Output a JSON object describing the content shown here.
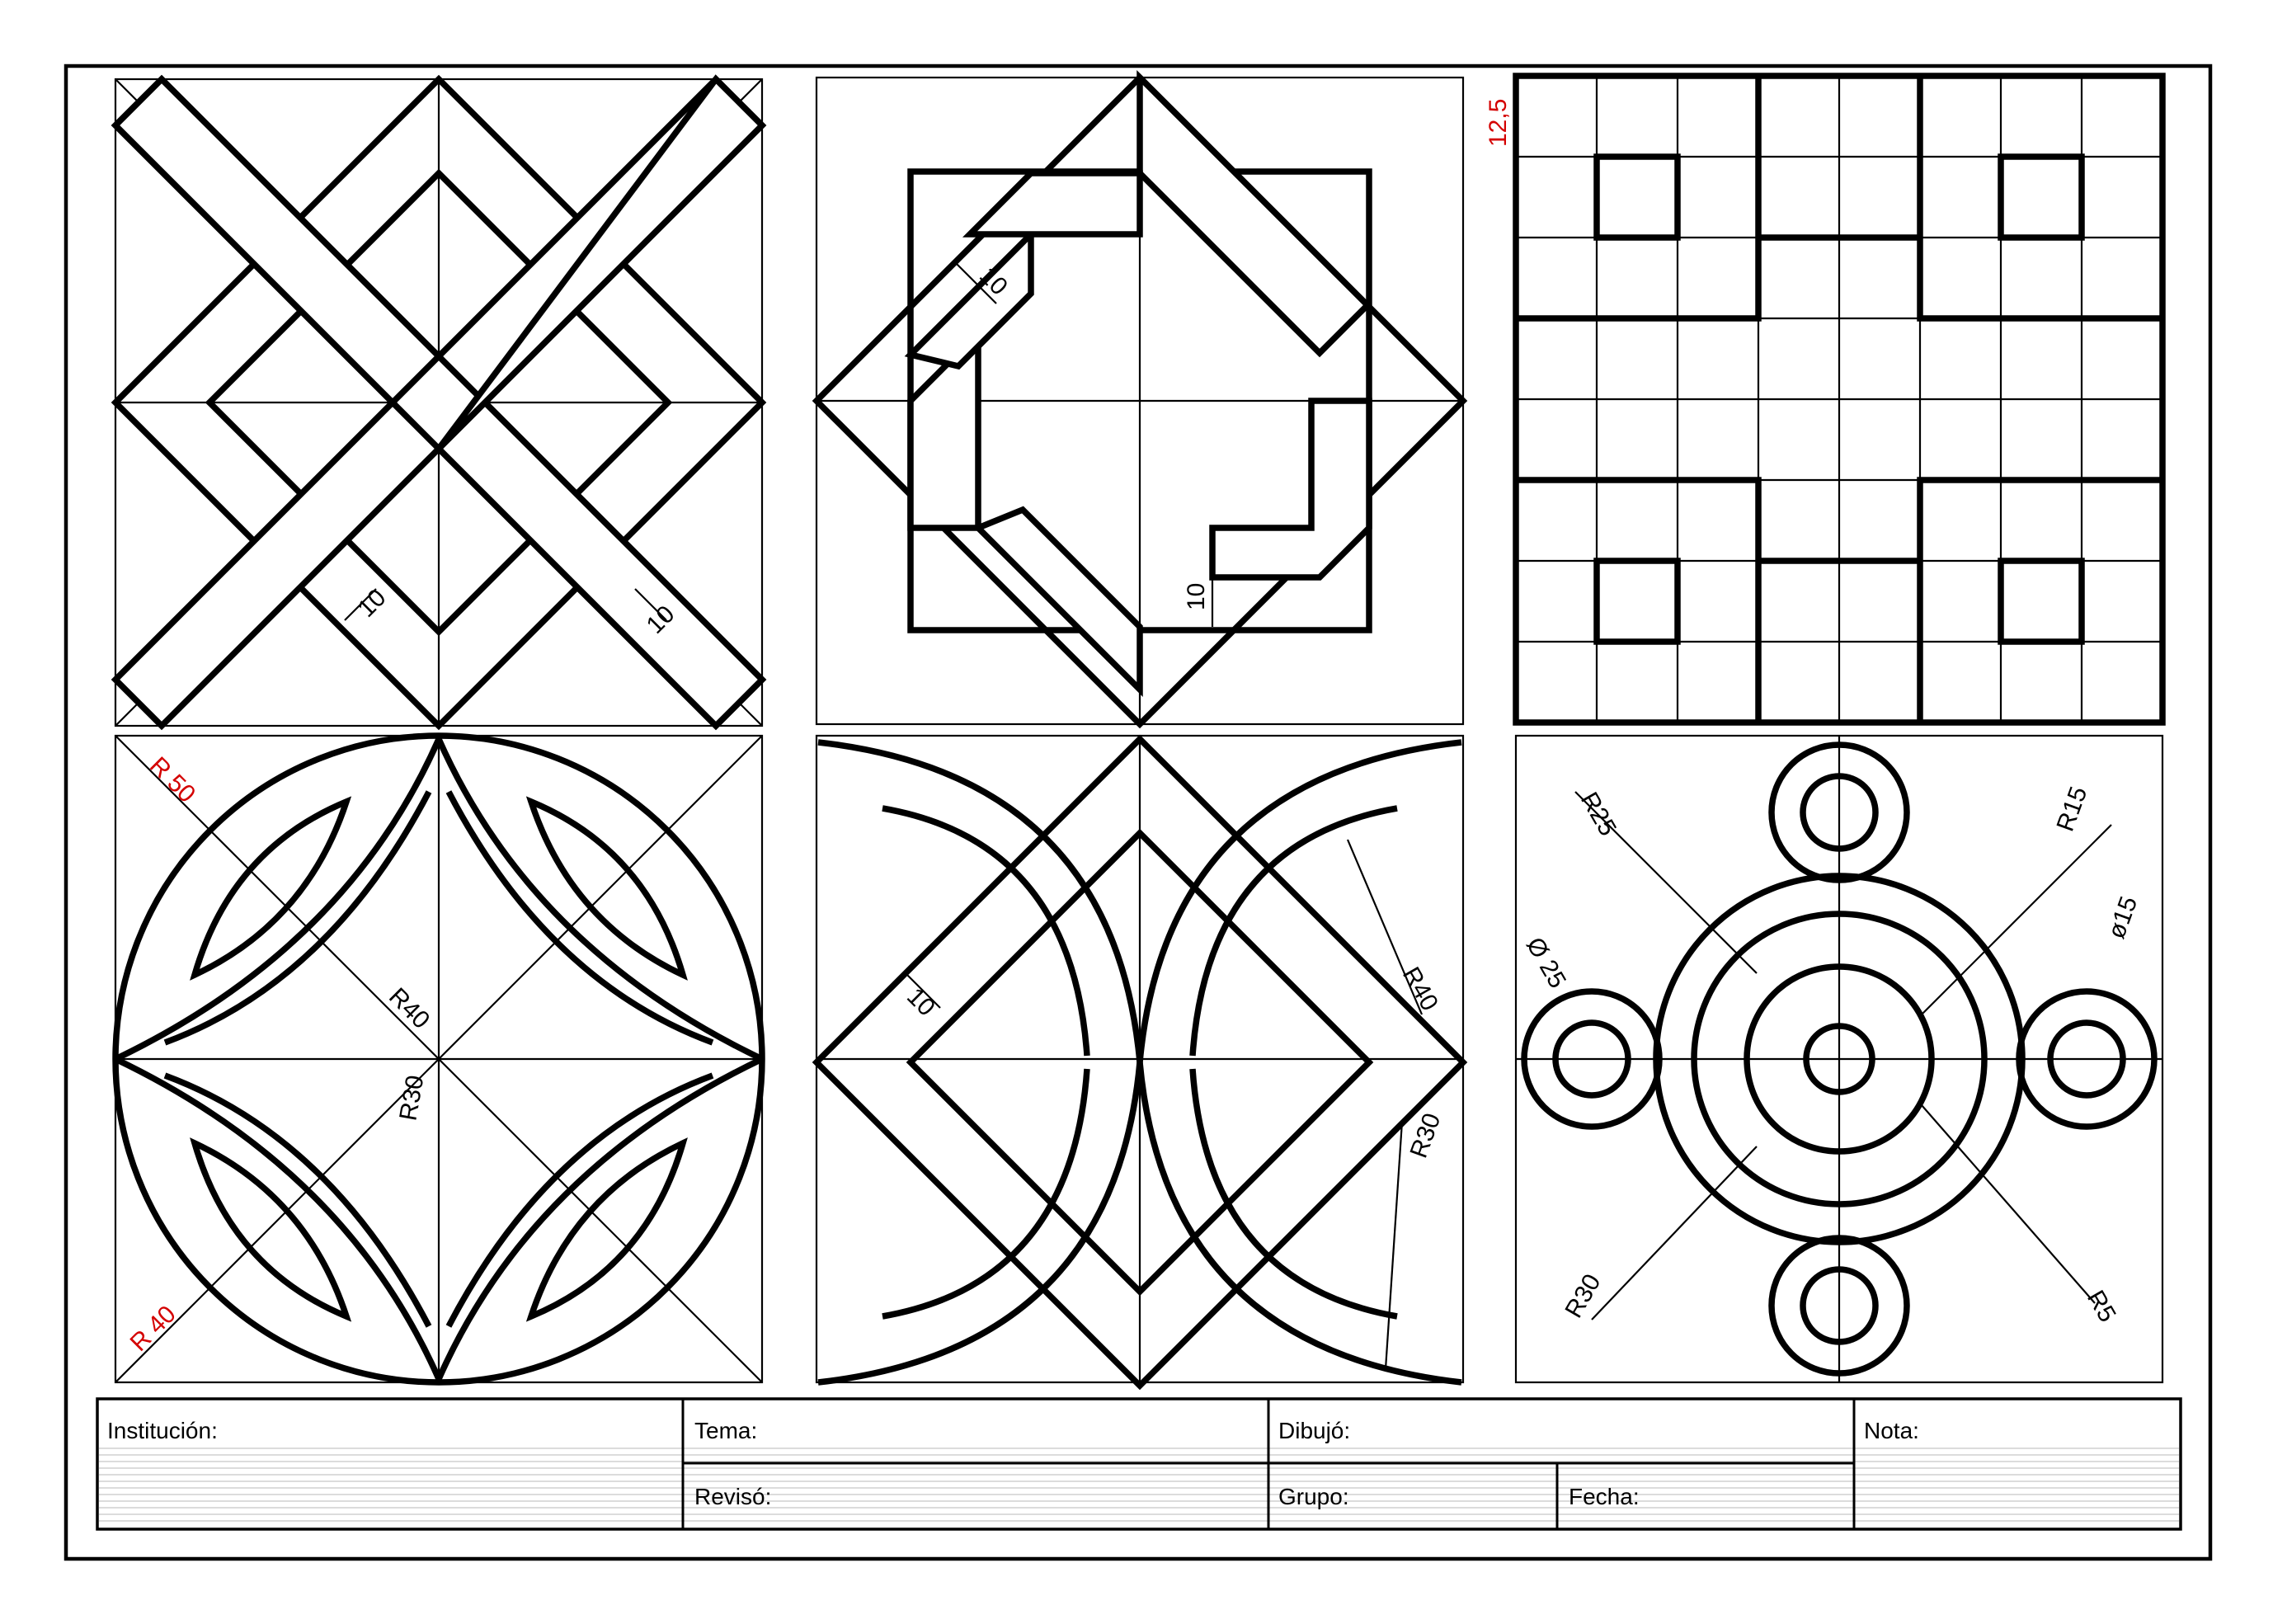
{
  "panels": {
    "p1": {
      "dims": [
        "10",
        "10"
      ]
    },
    "p2": {
      "dims": [
        "10",
        "10"
      ]
    },
    "p3": {
      "dims": [
        "12,5"
      ]
    },
    "p4": {
      "dims": [
        "R 50",
        "R 40",
        "R40",
        "R30"
      ]
    },
    "p5": {
      "dims": [
        "10",
        "R40",
        "R30"
      ]
    },
    "p6": {
      "dims": [
        "R25",
        "R15",
        "Ø 25",
        "ø15",
        "R30",
        "R5"
      ]
    }
  },
  "title_block": {
    "institucion": "Institución:",
    "tema": "Tema:",
    "dibujo": "Dibujó:",
    "nota": "Nota:",
    "reviso": "Revisó:",
    "grupo": "Grupo:",
    "fecha": "Fecha:"
  },
  "colors": {
    "line": "#000000",
    "dimension_red": "#d40000"
  }
}
